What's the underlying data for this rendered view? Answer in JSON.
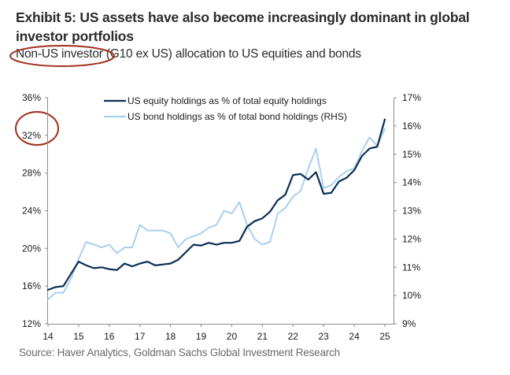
{
  "title": "Exhibit 5: US assets have also become increasingly dominant in global investor portfolios",
  "subtitle": "Non-US investor (G10 ex US) allocation to US equities and bonds",
  "source": "Source: Haver Analytics, Goldman Sachs Global Investment Research",
  "annotations": [
    {
      "type": "ellipse",
      "target": "Non-US investor",
      "color": "#a0301e"
    },
    {
      "type": "ellipse",
      "target": "32% left axis tick",
      "color": "#a0301e"
    }
  ],
  "chart_data": {
    "type": "line",
    "title": "Non-US investor (G10 ex US) allocation to US equities and bonds",
    "xlabel": "",
    "ylabel": "",
    "y2label": "",
    "grid": false,
    "legend_position": "top-center",
    "x_ticks": [
      "14",
      "15",
      "16",
      "17",
      "18",
      "19",
      "20",
      "21",
      "22",
      "23",
      "24",
      "25"
    ],
    "xlim": [
      2014,
      2025.25
    ],
    "y_left": {
      "ylim": [
        12,
        36
      ],
      "ticks": [
        "12%",
        "16%",
        "20%",
        "24%",
        "28%",
        "32%",
        "36%"
      ],
      "tick_values": [
        12,
        16,
        20,
        24,
        28,
        32,
        36
      ]
    },
    "y_right": {
      "ylim": [
        9,
        17
      ],
      "ticks": [
        "9%",
        "10%",
        "11%",
        "12%",
        "13%",
        "14%",
        "15%",
        "16%",
        "17%"
      ],
      "tick_values": [
        9,
        10,
        11,
        12,
        13,
        14,
        15,
        16,
        17
      ]
    },
    "x": [
      2014.0,
      2014.25,
      2014.5,
      2014.75,
      2015.0,
      2015.25,
      2015.5,
      2015.75,
      2016.0,
      2016.25,
      2016.5,
      2016.75,
      2017.0,
      2017.25,
      2017.5,
      2017.75,
      2018.0,
      2018.25,
      2018.5,
      2018.75,
      2019.0,
      2019.25,
      2019.5,
      2019.75,
      2020.0,
      2020.25,
      2020.5,
      2020.75,
      2021.0,
      2021.25,
      2021.5,
      2021.75,
      2022.0,
      2022.25,
      2022.5,
      2022.75,
      2023.0,
      2023.25,
      2023.5,
      2023.75,
      2024.0,
      2024.25,
      2024.5,
      2024.75,
      2025.0
    ],
    "series": [
      {
        "name": "US equity holdings as % of total equity holdings",
        "axis": "left",
        "color": "#0b2e52",
        "values": [
          15.6,
          15.9,
          16.0,
          17.3,
          18.6,
          18.2,
          17.9,
          18.0,
          17.8,
          17.7,
          18.4,
          18.1,
          18.4,
          18.6,
          18.2,
          18.3,
          18.4,
          18.8,
          19.6,
          20.4,
          20.3,
          20.6,
          20.4,
          20.6,
          20.6,
          20.8,
          22.3,
          22.9,
          23.2,
          23.9,
          25.1,
          25.7,
          27.8,
          27.9,
          27.3,
          28.1,
          25.8,
          25.9,
          27.1,
          27.5,
          28.3,
          29.8,
          30.6,
          30.8,
          33.7
        ]
      },
      {
        "name": "US bond holdings as % of total bond holdings (RHS)",
        "axis": "right",
        "color": "#a8d0f0",
        "values": [
          9.86,
          10.1,
          10.1,
          10.6,
          11.3,
          11.9,
          11.8,
          11.7,
          11.8,
          11.5,
          11.7,
          11.7,
          12.5,
          12.3,
          12.3,
          12.3,
          12.2,
          11.7,
          12.0,
          12.1,
          12.2,
          12.4,
          12.5,
          13.0,
          12.9,
          13.3,
          12.5,
          12.0,
          11.8,
          11.9,
          12.9,
          13.1,
          13.5,
          13.7,
          14.5,
          15.2,
          13.8,
          13.9,
          14.2,
          14.4,
          14.5,
          15.1,
          15.6,
          15.3,
          15.9
        ]
      }
    ]
  }
}
